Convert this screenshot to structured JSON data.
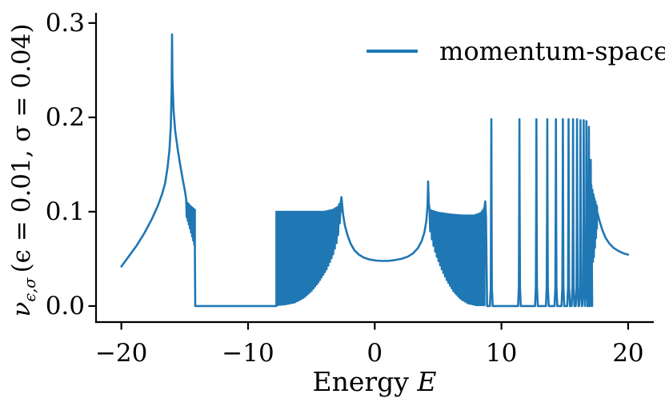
{
  "accent_color": "#1f77b4",
  "axis_color": "#000000",
  "legend": {
    "label": "momentum-space"
  },
  "xlabel_parts": {
    "prefix": "Energy ",
    "math": "E"
  },
  "ylabel_parts": {
    "nu": "ν",
    "sub": "ϵ,σ",
    "rest": " (ϵ = 0.01, σ = 0.04)"
  },
  "chart_data": {
    "type": "line",
    "title": "",
    "xlabel": "Energy E",
    "ylabel": "ν_{ϵ,σ} (ϵ = 0.01, σ = 0.04)",
    "xlim": [
      -22,
      22
    ],
    "ylim": [
      -0.017,
      0.31
    ],
    "grid": false,
    "legend_position": "upper right",
    "x_ticks": [
      {
        "value": -20,
        "label": "−20"
      },
      {
        "value": -10,
        "label": "−10"
      },
      {
        "value": 0,
        "label": "0"
      },
      {
        "value": 10,
        "label": "10"
      },
      {
        "value": 20,
        "label": "20"
      }
    ],
    "y_ticks": [
      {
        "value": 0.0,
        "label": "0.0"
      },
      {
        "value": 0.1,
        "label": "0.1"
      },
      {
        "value": 0.2,
        "label": "0.2"
      },
      {
        "value": 0.3,
        "label": "0.3"
      }
    ],
    "series": [
      {
        "name": "momentum-space",
        "color": "#1f77b4",
        "linewidth": 2.6,
        "segments": [
          {
            "type": "line",
            "points": [
              [
                -20,
                0.042
              ],
              [
                -19.4,
                0.053
              ],
              [
                -18.8,
                0.064
              ],
              [
                -18.2,
                0.077
              ],
              [
                -17.6,
                0.092
              ],
              [
                -17.1,
                0.107
              ],
              [
                -16.8,
                0.118
              ],
              [
                -16.55,
                0.13
              ],
              [
                -16.35,
                0.147
              ],
              [
                -16.2,
                0.166
              ],
              [
                -16.1,
                0.19
              ],
              [
                -16.03,
                0.23
              ],
              [
                -16.0,
                0.288
              ],
              [
                -15.97,
                0.24
              ],
              [
                -15.88,
                0.207
              ],
              [
                -15.75,
                0.186
              ],
              [
                -15.55,
                0.166
              ],
              [
                -15.35,
                0.149
              ],
              [
                -15.15,
                0.134
              ],
              [
                -14.98,
                0.122
              ],
              [
                -14.88,
                0.113
              ]
            ]
          },
          {
            "type": "osc",
            "x0": -14.88,
            "x1": -14.2,
            "period": 0.085,
            "upper": [
              [
                -14.88,
                0.111
              ],
              [
                -14.55,
                0.106
              ],
              [
                -14.2,
                0.102
              ]
            ],
            "lower": [
              [
                -14.88,
                0.096
              ],
              [
                -14.6,
                0.083
              ],
              [
                -14.38,
                0.072
              ],
              [
                -14.2,
                0.063
              ]
            ]
          },
          {
            "type": "line",
            "points": [
              [
                -14.2,
                0.063
              ],
              [
                -14.17,
                0.0
              ],
              [
                -7.76,
                0.0
              ]
            ]
          },
          {
            "type": "osc",
            "x0": -7.76,
            "x1": -2.68,
            "period": 0.13,
            "upper": [
              [
                -7.76,
                0.1
              ],
              [
                -6.5,
                0.1
              ],
              [
                -5.0,
                0.1
              ],
              [
                -4.0,
                0.1
              ],
              [
                -3.3,
                0.102
              ],
              [
                -2.95,
                0.105
              ],
              [
                -2.68,
                0.111
              ]
            ],
            "lower": [
              [
                -7.76,
                0.001
              ],
              [
                -7.0,
                0.002
              ],
              [
                -6.3,
                0.004
              ],
              [
                -5.6,
                0.009
              ],
              [
                -5.0,
                0.016
              ],
              [
                -4.4,
                0.026
              ],
              [
                -3.8,
                0.039
              ],
              [
                -3.3,
                0.054
              ],
              [
                -2.95,
                0.07
              ],
              [
                -2.78,
                0.085
              ],
              [
                -2.68,
                0.1
              ]
            ]
          },
          {
            "type": "line",
            "points": [
              [
                -2.68,
                0.111
              ],
              [
                -2.63,
                0.1155
              ],
              [
                -2.58,
                0.108
              ],
              [
                -2.5,
                0.097
              ],
              [
                -2.35,
                0.085
              ],
              [
                -2.15,
                0.075
              ],
              [
                -1.9,
                0.066
              ],
              [
                -1.6,
                0.059
              ],
              [
                -1.25,
                0.0545
              ],
              [
                -0.85,
                0.0513
              ],
              [
                -0.4,
                0.0493
              ],
              [
                0.1,
                0.0482
              ],
              [
                0.6,
                0.0478
              ],
              [
                1.1,
                0.048
              ],
              [
                1.6,
                0.0487
              ],
              [
                2.1,
                0.05
              ],
              [
                2.6,
                0.0523
              ],
              [
                3.0,
                0.0556
              ],
              [
                3.4,
                0.0613
              ],
              [
                3.7,
                0.0688
              ],
              [
                3.92,
                0.0782
              ],
              [
                4.07,
                0.09
              ],
              [
                4.16,
                0.105
              ],
              [
                4.21,
                0.132
              ],
              [
                4.26,
                0.11
              ],
              [
                4.32,
                0.103
              ]
            ]
          },
          {
            "type": "osc",
            "x0": 4.32,
            "x1": 8.66,
            "period": 0.13,
            "upper": [
              [
                4.32,
                0.102
              ],
              [
                5.0,
                0.099
              ],
              [
                6.0,
                0.097
              ],
              [
                7.0,
                0.096
              ],
              [
                7.8,
                0.096
              ],
              [
                8.3,
                0.098
              ],
              [
                8.66,
                0.104
              ]
            ],
            "lower": [
              [
                4.32,
                0.083
              ],
              [
                4.55,
                0.068
              ],
              [
                4.85,
                0.054
              ],
              [
                5.25,
                0.04
              ],
              [
                5.7,
                0.027
              ],
              [
                6.2,
                0.016
              ],
              [
                6.75,
                0.008
              ],
              [
                7.35,
                0.003
              ],
              [
                8.0,
                0.001
              ],
              [
                8.66,
                0.001
              ]
            ]
          },
          {
            "type": "line",
            "points": [
              [
                8.66,
                0.104
              ],
              [
                8.72,
                0.111
              ],
              [
                8.78,
                0.095
              ],
              [
                8.83,
                0.04
              ],
              [
                8.87,
                0.0
              ],
              [
                9.05,
                0.0
              ]
            ]
          },
          {
            "type": "spikes",
            "baseline": 0.0,
            "halfwidth": 0.11,
            "spikes": [
              [
                9.2,
                0.198
              ],
              [
                11.42,
                0.198
              ],
              [
                12.76,
                0.198
              ],
              [
                13.62,
                0.198
              ],
              [
                14.3,
                0.198
              ],
              [
                14.85,
                0.198
              ],
              [
                15.3,
                0.198
              ],
              [
                15.65,
                0.198
              ],
              [
                15.97,
                0.198
              ],
              [
                16.24,
                0.197
              ],
              [
                16.49,
                0.197
              ],
              [
                16.71,
                0.196
              ],
              [
                16.9,
                0.19
              ],
              [
                17.05,
                0.155
              ]
            ]
          },
          {
            "type": "osc",
            "x0": 17.1,
            "x1": 17.55,
            "period": 0.08,
            "upper": [
              [
                17.1,
                0.128
              ],
              [
                17.3,
                0.116
              ],
              [
                17.55,
                0.105
              ]
            ],
            "lower": [
              [
                17.1,
                0.04
              ],
              [
                17.3,
                0.052
              ],
              [
                17.55,
                0.084
              ]
            ]
          },
          {
            "type": "line",
            "points": [
              [
                17.55,
                0.1
              ],
              [
                17.75,
                0.09
              ],
              [
                17.95,
                0.081
              ],
              [
                18.2,
                0.073
              ],
              [
                18.5,
                0.0665
              ],
              [
                18.85,
                0.0617
              ],
              [
                19.25,
                0.0582
              ],
              [
                19.65,
                0.0558
              ],
              [
                20.0,
                0.0545
              ]
            ]
          }
        ]
      }
    ]
  }
}
